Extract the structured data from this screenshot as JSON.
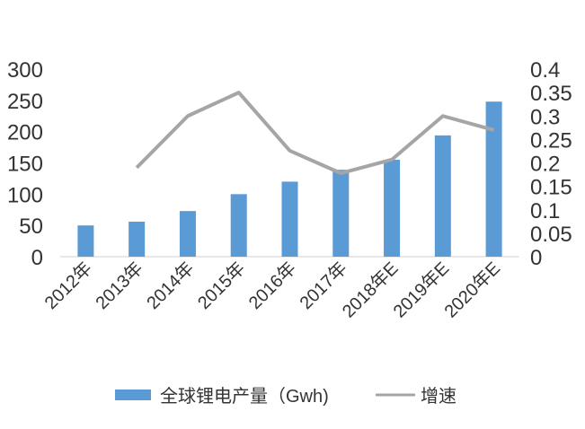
{
  "chart_data": {
    "type": "bar+line",
    "categories": [
      "2012年",
      "2013年",
      "2014年",
      "2015年",
      "2016年",
      "2017年",
      "2018年E",
      "2019年E",
      "2020年E"
    ],
    "series": [
      {
        "name": "全球锂电产量（Gwh)",
        "type": "bar",
        "axis": "left",
        "color": "#5b9bd5",
        "values": [
          50,
          56,
          73,
          100,
          120,
          139,
          155,
          194,
          248
        ]
      },
      {
        "name": "增速",
        "type": "line",
        "axis": "right",
        "color": "#a5a5a5",
        "values": [
          null,
          0.19,
          0.3,
          0.35,
          0.226,
          0.178,
          0.207,
          0.3,
          0.27
        ]
      }
    ],
    "y_left": {
      "range": [
        0,
        300
      ],
      "ticks": [
        "0",
        "50",
        "100",
        "150",
        "200",
        "250",
        "300"
      ]
    },
    "y_right": {
      "range": [
        0,
        0.4
      ],
      "ticks": [
        "0",
        "0.05",
        "0.1",
        "0.15",
        "0.2",
        "0.25",
        "0.3",
        "0.35",
        "0.4"
      ]
    },
    "grid": false,
    "legend": {
      "position": "bottom",
      "items": [
        "全球锂电产量（Gwh)",
        "增速"
      ]
    }
  }
}
